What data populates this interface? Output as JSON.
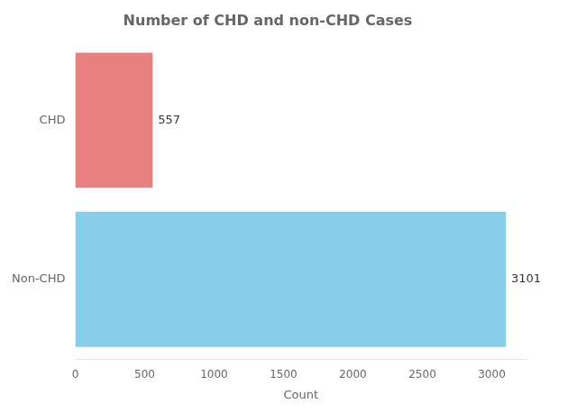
{
  "chart_data": {
    "type": "bar",
    "orientation": "horizontal",
    "title": "Number of CHD and non-CHD Cases",
    "xlabel": "Count",
    "categories": [
      "CHD",
      "Non-CHD"
    ],
    "values": [
      557,
      3101
    ],
    "colors": [
      "#E88080",
      "#87CEEB"
    ],
    "xlim": [
      0,
      3250
    ],
    "xticks": [
      0,
      500,
      1000,
      1500,
      2000,
      2500,
      3000
    ],
    "grid": false,
    "data_labels": true
  }
}
